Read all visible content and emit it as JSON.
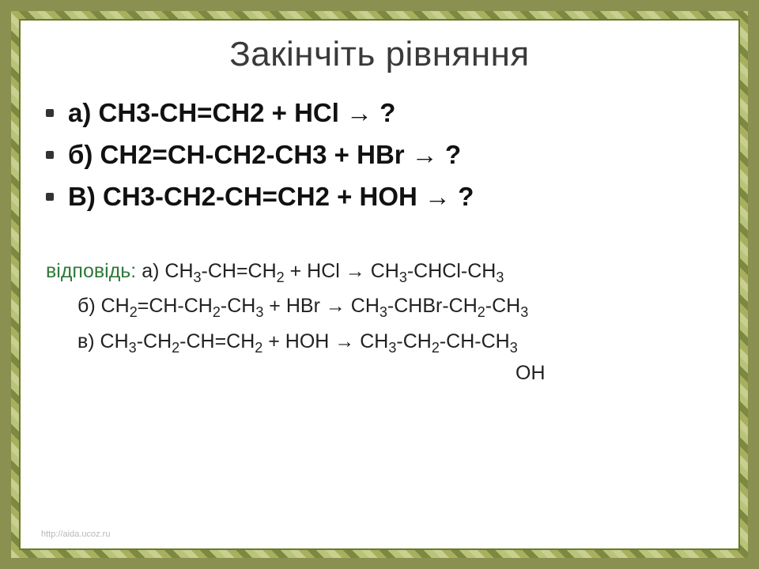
{
  "title": "Закінчіть рівняння",
  "title_fontsize": 44,
  "reaction_fontsize": 33,
  "answer_fontsize": 25,
  "colors": {
    "title": "#3a3a3a",
    "reaction_text": "#111111",
    "answer_label": "#2e7a3a",
    "answer_text": "#222222",
    "background": "#ffffff",
    "border_inner": "#6b7a2e",
    "border_leaf_1": "#c8cf8f",
    "border_leaf_2": "#a8b060",
    "border_leaf_3": "#7d8840",
    "border_leaf_4": "#b8c47a",
    "footer": "#b8b8b8"
  },
  "reactions": {
    "a": "а) CH3-CH=CH2 + HCl → ?",
    "b": "б) CH2=CH-CH2-CH3 + HBr → ?",
    "c": "В) CH3-CH2-CH=CH2 + HOH → ?"
  },
  "answer_label": "відповідь:",
  "answers": {
    "a_prefix": " а) CH",
    "a_rest": "-CH=CH",
    "a_plus": " + HCl → CH",
    "a_p2": "-CHCl-CH",
    "b_prefix": "б) CH",
    "b_r1": "=CH-CH",
    "b_r2": "-CH",
    "b_plus": " + HBr →  CH",
    "b_p2": "-CHBr-CH",
    "b_p3": "-CH",
    "c_prefix": "в) CH",
    "c_r1": "-CH",
    "c_r2": "-CH=CH",
    "c_plus": " + HOH → CH",
    "c_p2": "-CH",
    "c_p3": "-CH-CH",
    "oh": "OH"
  },
  "footer": "http://aida.ucoz.ru"
}
